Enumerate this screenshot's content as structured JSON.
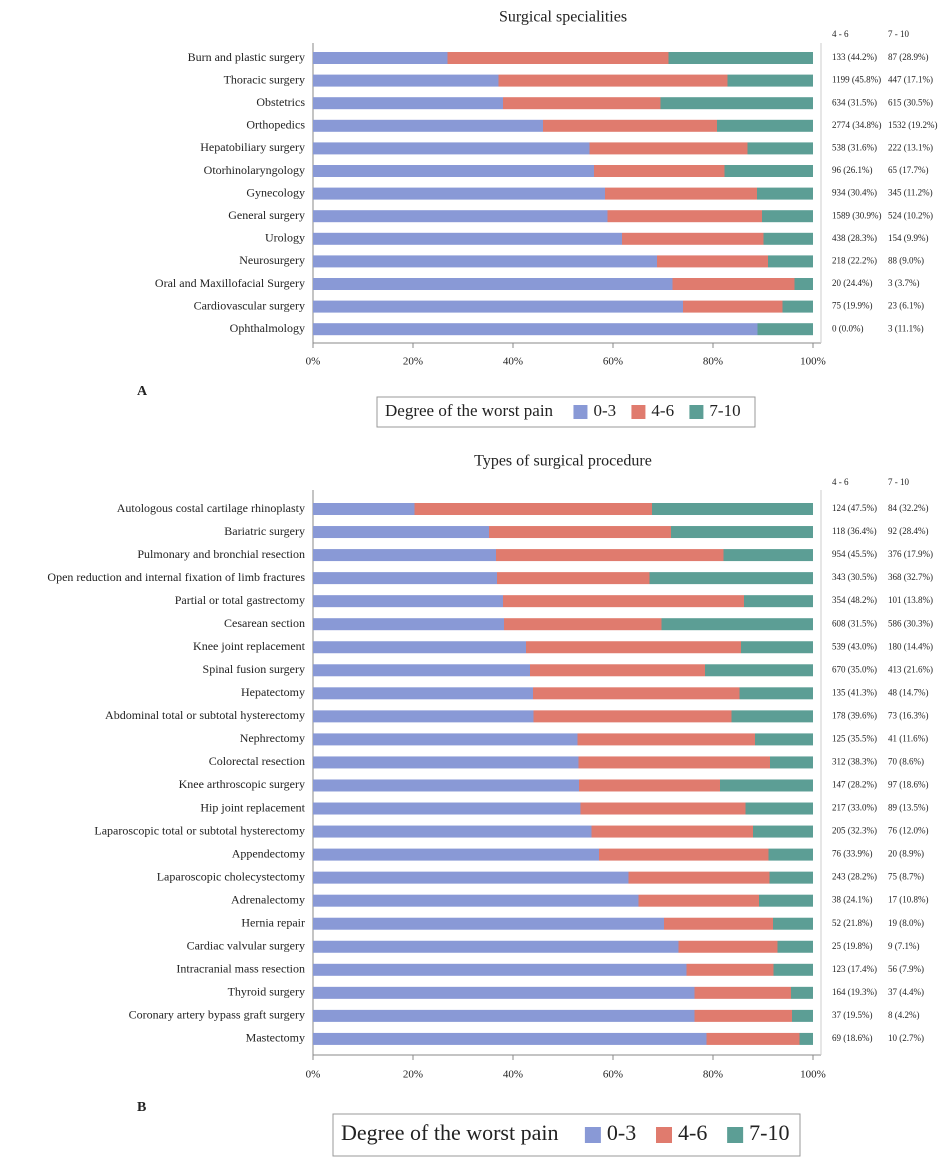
{
  "chart_data": [
    {
      "type": "bar",
      "orientation": "horizontal",
      "stacked": true,
      "title": "Surgical specialities",
      "panel_label": "A",
      "legend_title": "Degree of the worst pain",
      "column_headers": [
        "4 - 6",
        "7 - 10"
      ],
      "xlim": [
        0,
        100
      ],
      "xticks": [
        {
          "value": 0,
          "label": "0%"
        },
        {
          "value": 20,
          "label": "20%"
        },
        {
          "value": 40,
          "label": "40%"
        },
        {
          "value": 60,
          "label": "60%"
        },
        {
          "value": 80,
          "label": "80%"
        },
        {
          "value": 100,
          "label": "100%"
        }
      ],
      "categories": [
        "Burn and plastic surgery",
        "Thoracic surgery",
        "Obstetrics",
        "Orthopedics",
        "Hepatobiliary surgery",
        "Otorhinolaryngology",
        "Gynecology",
        "General surgery",
        "Urology",
        "Neurosurgery",
        "Oral and Maxillofacial Surgery",
        "Cardiovascular surgery",
        "Ophthalmology"
      ],
      "series": [
        {
          "name": "0-3",
          "color": "#8999d6",
          "values": [
            26.9,
            37.1,
            38.0,
            46.0,
            55.3,
            56.2,
            58.4,
            58.9,
            61.8,
            68.8,
            71.9,
            74.0,
            88.9
          ]
        },
        {
          "name": "4-6",
          "color": "#e07b6e",
          "values": [
            44.2,
            45.8,
            31.5,
            34.8,
            31.6,
            26.1,
            30.4,
            30.9,
            28.3,
            22.2,
            24.4,
            19.9,
            0.0
          ],
          "value_labels": [
            "133 (44.2%)",
            "1199 (45.8%)",
            "634 (31.5%)",
            "2774 (34.8%)",
            "538 (31.6%)",
            "96 (26.1%)",
            "934 (30.4%)",
            "1589 (30.9%)",
            "438 (28.3%)",
            "218 (22.2%)",
            "20 (24.4%)",
            "75 (19.9%)",
            "0 (0.0%)"
          ]
        },
        {
          "name": "7-10",
          "color": "#5c9e95",
          "values": [
            28.9,
            17.1,
            30.5,
            19.2,
            13.1,
            17.7,
            11.2,
            10.2,
            9.9,
            9.0,
            3.7,
            6.1,
            11.1
          ],
          "value_labels": [
            "87 (28.9%)",
            "447 (17.1%)",
            "615 (30.5%)",
            "1532 (19.2%)",
            "222 (13.1%)",
            "65 (17.7%)",
            "345 (11.2%)",
            "524 (10.2%)",
            "154 (9.9%)",
            "88 (9.0%)",
            "3 (3.7%)",
            "23 (6.1%)",
            "3 (11.1%)"
          ]
        }
      ]
    },
    {
      "type": "bar",
      "orientation": "horizontal",
      "stacked": true,
      "title": "Types of surgical procedure",
      "panel_label": "B",
      "legend_title": "Degree of the worst pain",
      "column_headers": [
        "4 - 6",
        "7 - 10"
      ],
      "xlim": [
        0,
        100
      ],
      "xticks": [
        {
          "value": 0,
          "label": "0%"
        },
        {
          "value": 20,
          "label": "20%"
        },
        {
          "value": 40,
          "label": "40%"
        },
        {
          "value": 60,
          "label": "60%"
        },
        {
          "value": 80,
          "label": "80%"
        },
        {
          "value": 100,
          "label": "100%"
        }
      ],
      "categories": [
        "Autologous costal cartilage rhinoplasty",
        "Bariatric surgery",
        "Pulmonary and bronchial resection",
        "Open reduction and internal fixation of limb fractures",
        "Partial or total gastrectomy",
        "Cesarean section",
        "Knee joint replacement",
        "Spinal fusion surgery",
        "Hepatectomy",
        "Abdominal total or subtotal hysterectomy",
        "Nephrectomy",
        "Colorectal resection",
        "Knee arthroscopic surgery",
        "Hip joint replacement",
        "Laparoscopic total or subtotal hysterectomy",
        "Appendectomy",
        "Laparoscopic cholecystectomy",
        "Adrenalectomy",
        "Hernia repair",
        "Cardiac valvular surgery",
        "Intracranial mass resection",
        "Thyroid surgery",
        "Coronary artery bypass graft surgery",
        "Mastectomy"
      ],
      "series": [
        {
          "name": "0-3",
          "color": "#8999d6",
          "values": [
            20.3,
            35.2,
            36.6,
            36.8,
            38.0,
            38.2,
            42.6,
            43.4,
            44.0,
            44.1,
            52.9,
            53.1,
            53.2,
            53.5,
            55.7,
            57.2,
            63.1,
            65.1,
            70.2,
            73.1,
            74.7,
            76.3,
            76.3,
            78.7
          ]
        },
        {
          "name": "4-6",
          "color": "#e07b6e",
          "values": [
            47.5,
            36.4,
            45.5,
            30.5,
            48.2,
            31.5,
            43.0,
            35.0,
            41.3,
            39.6,
            35.5,
            38.3,
            28.2,
            33.0,
            32.3,
            33.9,
            28.2,
            24.1,
            21.8,
            19.8,
            17.4,
            19.3,
            19.5,
            18.6
          ],
          "value_labels": [
            "124 (47.5%)",
            "118 (36.4%)",
            "954 (45.5%)",
            "343 (30.5%)",
            "354 (48.2%)",
            "608 (31.5%)",
            "539 (43.0%)",
            "670 (35.0%)",
            "135 (41.3%)",
            "178 (39.6%)",
            "125 (35.5%)",
            "312 (38.3%)",
            "147 (28.2%)",
            "217 (33.0%)",
            "205 (32.3%)",
            "76 (33.9%)",
            "243 (28.2%)",
            "38 (24.1%)",
            "52 (21.8%)",
            "25 (19.8%)",
            "123 (17.4%)",
            "164 (19.3%)",
            "37 (19.5%)",
            "69 (18.6%)"
          ]
        },
        {
          "name": "7-10",
          "color": "#5c9e95",
          "values": [
            32.2,
            28.4,
            17.9,
            32.7,
            13.8,
            30.3,
            14.4,
            21.6,
            14.7,
            16.3,
            11.6,
            8.6,
            18.6,
            13.5,
            12.0,
            8.9,
            8.7,
            10.8,
            8.0,
            7.1,
            7.9,
            4.4,
            4.2,
            2.7
          ],
          "value_labels": [
            "84 (32.2%)",
            "92 (28.4%)",
            "376 (17.9%)",
            "368 (32.7%)",
            "101 (13.8%)",
            "586 (30.3%)",
            "180 (14.4%)",
            "413 (21.6%)",
            "48 (14.7%)",
            "73 (16.3%)",
            "41 (11.6%)",
            "70 (8.6%)",
            "97 (18.6%)",
            "89 (13.5%)",
            "76 (12.0%)",
            "20 (8.9%)",
            "75 (8.7%)",
            "17 (10.8%)",
            "19 (8.0%)",
            "9 (7.1%)",
            "56 (7.9%)",
            "37 (4.4%)",
            "8 (4.2%)",
            "10 (2.7%)"
          ]
        }
      ]
    }
  ]
}
